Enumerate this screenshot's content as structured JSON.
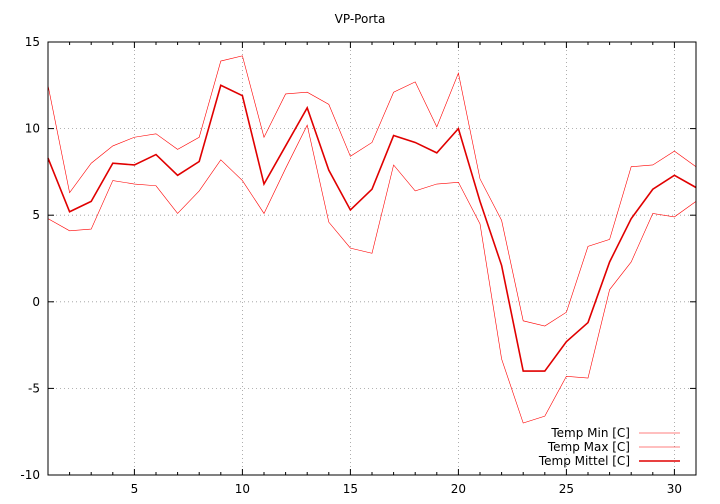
{
  "chart_data": {
    "type": "line",
    "title": "VP-Porta",
    "xlabel": "",
    "ylabel": "",
    "xlim": [
      1,
      31
    ],
    "ylim": [
      -10,
      15
    ],
    "xticks": [
      5,
      10,
      15,
      20,
      25,
      30
    ],
    "yticks": [
      -10,
      -5,
      0,
      5,
      10,
      15
    ],
    "grid": true,
    "legend_position": "bottom-right",
    "x": [
      1,
      2,
      3,
      4,
      5,
      6,
      7,
      8,
      9,
      10,
      11,
      12,
      13,
      14,
      15,
      16,
      17,
      18,
      19,
      20,
      21,
      22,
      23,
      24,
      25,
      26,
      27,
      28,
      29,
      30,
      31
    ],
    "series": [
      {
        "name": "Temp Min [C]",
        "color": "#ff0000",
        "line_width": 0.6,
        "values": [
          4.8,
          4.1,
          4.2,
          7.0,
          6.8,
          6.7,
          5.1,
          6.4,
          8.2,
          7.0,
          5.1,
          7.7,
          10.2,
          4.6,
          3.1,
          2.8,
          7.9,
          6.4,
          6.8,
          6.9,
          4.5,
          -3.3,
          -7.0,
          -6.6,
          -4.3,
          -4.4,
          0.7,
          2.3,
          5.1,
          4.9,
          5.8
        ]
      },
      {
        "name": "Temp Max [C]",
        "color": "#ff0000",
        "line_width": 0.6,
        "values": [
          12.5,
          6.3,
          8.0,
          9.0,
          9.5,
          9.7,
          8.8,
          9.5,
          13.9,
          14.2,
          9.5,
          12.0,
          12.1,
          11.4,
          8.4,
          9.2,
          12.1,
          12.7,
          10.1,
          13.2,
          7.1,
          4.7,
          -1.1,
          -1.4,
          -0.6,
          3.2,
          3.6,
          7.8,
          7.9,
          8.7,
          7.8
        ]
      },
      {
        "name": "Temp Mittel [C]",
        "color": "#e00000",
        "line_width": 1.6,
        "values": [
          8.3,
          5.2,
          5.8,
          8.0,
          7.9,
          8.5,
          7.3,
          8.1,
          12.5,
          11.9,
          6.8,
          9.0,
          11.2,
          7.6,
          5.3,
          6.5,
          9.6,
          9.2,
          8.6,
          10.0,
          5.8,
          2.1,
          -4.0,
          -4.0,
          -2.3,
          -1.2,
          2.3,
          4.8,
          6.5,
          7.3,
          6.6
        ]
      }
    ]
  }
}
